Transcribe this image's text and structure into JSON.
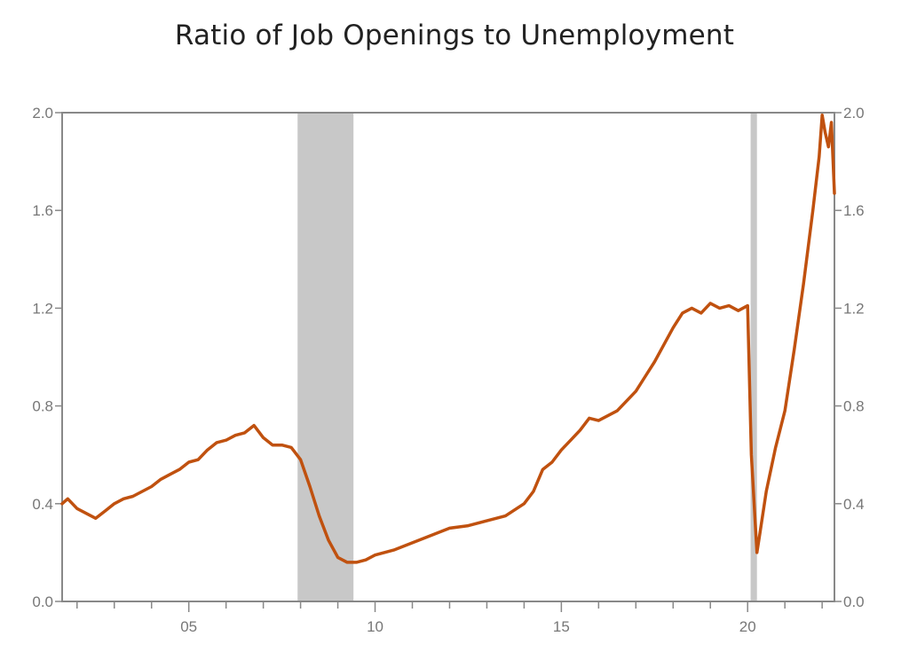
{
  "chart_data": {
    "type": "line",
    "title": "Ratio of Job Openings to Unemployment",
    "xlabel": "",
    "ylabel": "",
    "xlim": [
      2001.6,
      2022.33
    ],
    "ylim": [
      0.0,
      2.0
    ],
    "y_ticks": [
      "0.0",
      "0.4",
      "0.8",
      "1.2",
      "1.6",
      "2.0"
    ],
    "y_tick_values": [
      0.0,
      0.4,
      0.8,
      1.2,
      1.6,
      2.0
    ],
    "x_ticks": [
      "05",
      "10",
      "15",
      "20"
    ],
    "x_tick_values": [
      2005,
      2010,
      2015,
      2020
    ],
    "grid": false,
    "dual_y_axis": true,
    "recessions": [
      [
        2007.92,
        2009.42
      ],
      [
        2020.08,
        2020.25
      ]
    ],
    "colors": {
      "line": "#C0510F",
      "recession": "#C8C8C8",
      "axis": "#888888"
    },
    "series": [
      {
        "x": [
          2001.6,
          2001.75,
          2002.0,
          2002.25,
          2002.5,
          2002.75,
          2003.0,
          2003.25,
          2003.5,
          2003.75,
          2004.0,
          2004.25,
          2004.5,
          2004.75,
          2005.0,
          2005.25,
          2005.5,
          2005.75,
          2006.0,
          2006.25,
          2006.5,
          2006.75,
          2007.0,
          2007.25,
          2007.5,
          2007.75,
          2008.0,
          2008.25,
          2008.5,
          2008.75,
          2009.0,
          2009.25,
          2009.5,
          2009.75,
          2010.0,
          2010.5,
          2011.0,
          2011.5,
          2012.0,
          2012.5,
          2013.0,
          2013.5,
          2014.0,
          2014.25,
          2014.5,
          2014.75,
          2015.0,
          2015.25,
          2015.5,
          2015.75,
          2016.0,
          2016.25,
          2016.5,
          2016.75,
          2017.0,
          2017.25,
          2017.5,
          2017.75,
          2018.0,
          2018.25,
          2018.5,
          2018.75,
          2019.0,
          2019.25,
          2019.5,
          2019.75,
          2020.0,
          2020.1,
          2020.25,
          2020.33,
          2020.5,
          2020.75,
          2021.0,
          2021.25,
          2021.5,
          2021.75,
          2021.92,
          2022.0,
          2022.08,
          2022.17,
          2022.25,
          2022.33
        ],
        "values": [
          0.4,
          0.42,
          0.38,
          0.36,
          0.34,
          0.37,
          0.4,
          0.42,
          0.43,
          0.45,
          0.47,
          0.5,
          0.52,
          0.54,
          0.57,
          0.58,
          0.62,
          0.65,
          0.66,
          0.68,
          0.69,
          0.72,
          0.67,
          0.64,
          0.64,
          0.63,
          0.58,
          0.47,
          0.35,
          0.25,
          0.18,
          0.16,
          0.16,
          0.17,
          0.19,
          0.21,
          0.24,
          0.27,
          0.3,
          0.31,
          0.33,
          0.35,
          0.4,
          0.45,
          0.54,
          0.57,
          0.62,
          0.66,
          0.7,
          0.75,
          0.74,
          0.76,
          0.78,
          0.82,
          0.86,
          0.92,
          0.98,
          1.05,
          1.12,
          1.18,
          1.2,
          1.18,
          1.22,
          1.2,
          1.21,
          1.19,
          1.21,
          0.6,
          0.2,
          0.28,
          0.45,
          0.63,
          0.78,
          1.03,
          1.3,
          1.6,
          1.82,
          1.99,
          1.92,
          1.86,
          1.96,
          1.67
        ]
      }
    ]
  }
}
